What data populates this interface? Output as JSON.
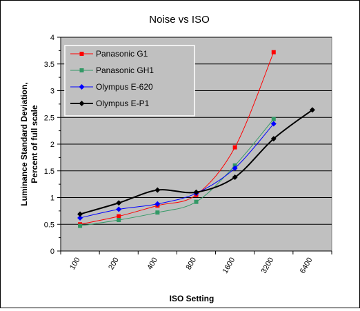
{
  "chart_data": {
    "type": "line",
    "title": "Noise vs ISO",
    "xlabel": "ISO Setting",
    "ylabel_lines": [
      "Luminance Standard Deviation,",
      "Percent of full scale"
    ],
    "categories": [
      "100",
      "200",
      "400",
      "800",
      "1600",
      "3200",
      "6400"
    ],
    "ylim": [
      0,
      4
    ],
    "yticks": [
      0,
      0.5,
      1,
      1.5,
      2,
      2.5,
      3,
      3.5,
      4
    ],
    "ytick_labels": [
      "0",
      "0.5",
      "1",
      "1.5",
      "2",
      "2.5",
      "3",
      "3.5",
      "4"
    ],
    "grid": "horizontal",
    "legend_position": "top-left",
    "plot_background": "#c0c0c0",
    "series": [
      {
        "name": "Panasonic G1",
        "color": "#ff0000",
        "marker": "square",
        "width": 1,
        "values": [
          0.5,
          0.65,
          0.85,
          1.05,
          1.94,
          3.72,
          null
        ]
      },
      {
        "name": "Panasonic GH1",
        "color": "#339966",
        "marker": "square",
        "width": 1,
        "values": [
          0.47,
          0.58,
          0.72,
          0.92,
          1.6,
          2.47,
          null
        ]
      },
      {
        "name": "Olympus E-620",
        "color": "#0000ff",
        "marker": "diamond",
        "width": 1,
        "values": [
          0.62,
          0.78,
          0.88,
          1.08,
          1.55,
          2.38,
          null
        ]
      },
      {
        "name": "Olympus E-P1",
        "color": "#000000",
        "marker": "diamond",
        "width": 2,
        "values": [
          0.69,
          0.9,
          1.14,
          1.1,
          1.38,
          2.1,
          2.64
        ]
      }
    ]
  }
}
